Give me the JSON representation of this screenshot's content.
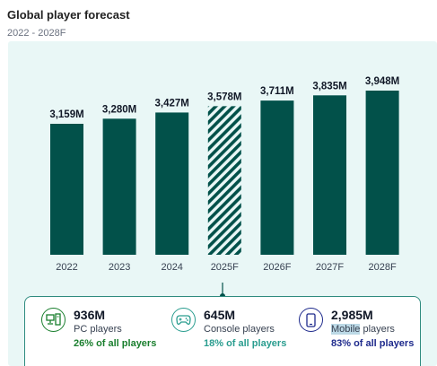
{
  "header": {
    "title": "Global player forecast",
    "subtitle": "2022 - 2028F"
  },
  "colors": {
    "bar": "#02514a",
    "forecast_hatch": "#02514a",
    "panel_bg": "#e9f7f6",
    "pc_accent": "#1a7f2e",
    "console_accent": "#2a9d8f",
    "mobile_accent": "#1e2a8c"
  },
  "chart_data": {
    "type": "bar",
    "categories": [
      "2022",
      "2023",
      "2024",
      "2025F",
      "2026F",
      "2027F",
      "2028F"
    ],
    "values": [
      3159,
      3280,
      3427,
      3578,
      3711,
      3835,
      3948
    ],
    "data_labels": [
      "3,159M",
      "3,280M",
      "3,427M",
      "3,578M",
      "3,711M",
      "3,835M",
      "3,948M"
    ],
    "hatched": [
      false,
      false,
      false,
      true,
      false,
      false,
      false
    ],
    "title": "Global player forecast",
    "subtitle": "2022 - 2028F",
    "xlabel": "",
    "ylabel": "",
    "grid": false
  },
  "stats": [
    {
      "value": "936M",
      "label": "PC players",
      "share": "26% of all players",
      "icon": "pc-icon"
    },
    {
      "value": "645M",
      "label": "Console players",
      "share": "18% of all players",
      "icon": "gamepad-icon"
    },
    {
      "value": "2,985M",
      "label_highlight": "Mobile",
      "label_rest": " players",
      "share": "83% of all players",
      "icon": "smartphone-icon"
    }
  ]
}
